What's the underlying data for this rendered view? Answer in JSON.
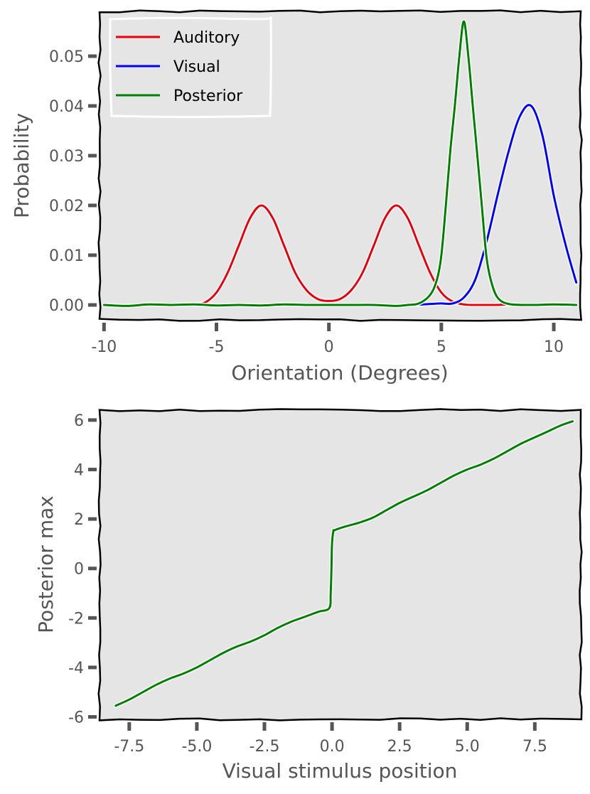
{
  "chart_data": [
    {
      "type": "line",
      "xlabel": "Orientation (Degrees)",
      "ylabel": "Probability",
      "xlim": [
        -10.2,
        11.2
      ],
      "ylim": [
        -0.003,
        0.059
      ],
      "xticks": [
        -10,
        -5,
        0,
        5,
        10
      ],
      "xtick_labels": [
        "-10",
        "-5",
        "0",
        "5",
        "10"
      ],
      "yticks": [
        0.0,
        0.01,
        0.02,
        0.03,
        0.04,
        0.05
      ],
      "ytick_labels": [
        "0.00",
        "0.01",
        "0.02",
        "0.03",
        "0.04",
        "0.05"
      ],
      "legend_position": "top-left",
      "background": "#e5e5e5",
      "grid": false,
      "series": [
        {
          "name": "Auditory",
          "color": "#e8000b",
          "x": [
            -6.0,
            -5.5,
            -5.0,
            -4.5,
            -4.0,
            -3.5,
            -3.0,
            -2.5,
            -2.0,
            -1.5,
            -1.0,
            -0.5,
            0.0,
            0.5,
            1.0,
            1.5,
            2.0,
            2.5,
            3.0,
            3.5,
            4.0,
            4.5,
            5.0,
            5.5,
            6.0,
            6.5,
            7.0,
            7.5,
            8.0,
            8.5,
            9.0
          ],
          "y": [
            0.0,
            0.0005,
            0.0025,
            0.0065,
            0.012,
            0.0175,
            0.02,
            0.0175,
            0.012,
            0.0065,
            0.003,
            0.0012,
            0.0008,
            0.0012,
            0.003,
            0.0065,
            0.012,
            0.0175,
            0.02,
            0.0175,
            0.012,
            0.0065,
            0.0025,
            0.0007,
            0.0001,
            0.0,
            0.0,
            0.0,
            0.0001,
            0.0,
            0.0
          ]
        },
        {
          "name": "Visual",
          "color": "#0000ff",
          "x": [
            3.8,
            4.5,
            5.0,
            5.5,
            6.0,
            6.5,
            7.0,
            7.5,
            8.0,
            8.5,
            9.0,
            9.5,
            10.0,
            10.5,
            11.0
          ],
          "y": [
            0.0,
            0.0002,
            0.0003,
            0.0003,
            0.0015,
            0.005,
            0.0125,
            0.022,
            0.031,
            0.038,
            0.04,
            0.034,
            0.022,
            0.0125,
            0.0045
          ]
        },
        {
          "name": "Posterior",
          "color": "#008000",
          "x": [
            -10.0,
            -9.0,
            -8.0,
            -7.0,
            -6.0,
            -5.0,
            -4.0,
            -3.0,
            -2.0,
            -1.0,
            0.0,
            1.0,
            2.0,
            3.0,
            3.5,
            4.0,
            4.5,
            4.8,
            5.0,
            5.2,
            5.4,
            5.6,
            5.8,
            6.0,
            6.2,
            6.4,
            6.6,
            6.8,
            7.0,
            7.2,
            7.5,
            8.0,
            9.0,
            10.0,
            11.0
          ],
          "y": [
            0.0,
            -0.0002,
            0.0001,
            0.0,
            0.0001,
            -0.0001,
            0.0,
            -0.0001,
            0.0001,
            0.0,
            0.0,
            0.0,
            0.0,
            -0.0002,
            0.0,
            0.0003,
            0.002,
            0.005,
            0.01,
            0.02,
            0.031,
            0.04,
            0.05,
            0.057,
            0.05,
            0.04,
            0.03,
            0.02,
            0.01,
            0.005,
            0.0015,
            0.0002,
            0.0,
            0.0001,
            0.0
          ]
        }
      ]
    },
    {
      "type": "line",
      "xlabel": "Visual stimulus position",
      "ylabel": "Posterior max",
      "xlim": [
        -8.6,
        9.2
      ],
      "ylim": [
        -6.1,
        6.4
      ],
      "xticks": [
        -7.5,
        -5.0,
        -2.5,
        0.0,
        2.5,
        5.0,
        7.5
      ],
      "xtick_labels": [
        "-7.5",
        "-5.0",
        "-2.5",
        "0.0",
        "2.5",
        "5.0",
        "7.5"
      ],
      "yticks": [
        -6,
        -4,
        -2,
        0,
        2,
        4,
        6
      ],
      "ytick_labels": [
        "-6",
        "-4",
        "-2",
        "0",
        "2",
        "4",
        "6"
      ],
      "background": "#e5e5e5",
      "grid": false,
      "series": [
        {
          "color": "#008000",
          "x": [
            -8.0,
            -7.5,
            -7.0,
            -6.5,
            -6.0,
            -5.5,
            -5.0,
            -4.5,
            -4.0,
            -3.5,
            -3.0,
            -2.5,
            -2.0,
            -1.5,
            -1.0,
            -0.5,
            -0.1,
            -0.05,
            -0.02,
            0.0,
            0.05,
            0.1,
            0.5,
            1.0,
            1.5,
            2.0,
            2.5,
            3.0,
            3.5,
            4.0,
            4.5,
            5.0,
            5.5,
            6.0,
            6.5,
            7.0,
            7.5,
            8.0,
            8.5,
            8.9
          ],
          "y": [
            -5.55,
            -5.3,
            -5.0,
            -4.7,
            -4.45,
            -4.25,
            -4.0,
            -3.7,
            -3.4,
            -3.15,
            -2.95,
            -2.7,
            -2.4,
            -2.15,
            -1.95,
            -1.75,
            -1.6,
            -1.0,
            0.0,
            1.0,
            1.5,
            1.55,
            1.7,
            1.85,
            2.05,
            2.35,
            2.65,
            2.9,
            3.15,
            3.45,
            3.75,
            4.0,
            4.2,
            4.45,
            4.75,
            5.05,
            5.3,
            5.55,
            5.8,
            5.95
          ]
        }
      ]
    }
  ]
}
